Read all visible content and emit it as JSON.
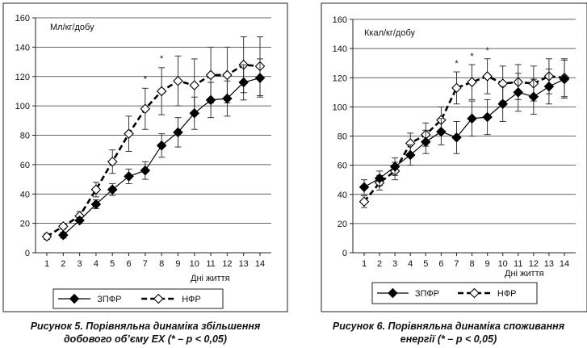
{
  "chart_data": [
    {
      "type": "line",
      "unit_label": "Мл/кг/добу",
      "xlabel": "Дні життя",
      "ylabel": "",
      "x": [
        1,
        2,
        3,
        4,
        5,
        6,
        7,
        8,
        9,
        10,
        11,
        12,
        13,
        14
      ],
      "ylim": [
        0,
        160
      ],
      "yticks": [
        0,
        20,
        40,
        60,
        80,
        100,
        120,
        140,
        160
      ],
      "grid": "horizontal",
      "legend": "bottom",
      "series": [
        {
          "name": "ЗПФР",
          "marker": "filled-diamond",
          "line": "solid",
          "color": "#000000",
          "x": [
            2,
            3,
            4,
            5,
            6,
            7,
            8,
            9,
            10,
            11,
            12,
            13,
            14
          ],
          "values": [
            12,
            22,
            33,
            43,
            52,
            56,
            73,
            82,
            95,
            104,
            105,
            116,
            119
          ],
          "err": [
            2,
            2,
            3,
            4,
            5,
            6,
            8,
            10,
            11,
            12,
            12,
            12,
            13
          ]
        },
        {
          "name": "НФР",
          "marker": "open-diamond",
          "line": "dashed",
          "color": "#000000",
          "x": [
            1,
            2,
            3,
            4,
            5,
            6,
            7,
            8,
            9,
            10,
            11,
            12,
            13,
            14
          ],
          "values": [
            11,
            18,
            25,
            43,
            62,
            81,
            98,
            110,
            117,
            114,
            121,
            121,
            128,
            127
          ],
          "err": [
            2,
            2,
            3,
            5,
            8,
            12,
            14,
            16,
            17,
            18,
            19,
            19,
            19,
            20
          ]
        }
      ],
      "significance_marks": [
        "*",
        "*"
      ],
      "significance_x": [
        7,
        8
      ]
    },
    {
      "type": "line",
      "unit_label": "Ккал/кг/добу",
      "xlabel": "Дні життя",
      "ylabel": "",
      "x": [
        1,
        2,
        3,
        4,
        5,
        6,
        7,
        8,
        9,
        10,
        11,
        12,
        13,
        14
      ],
      "ylim": [
        0,
        160
      ],
      "yticks": [
        0,
        20,
        40,
        60,
        80,
        100,
        120,
        140,
        160
      ],
      "grid": "horizontal",
      "legend": "bottom",
      "series": [
        {
          "name": "ЗПФР",
          "marker": "filled-diamond",
          "line": "solid",
          "color": "#000000",
          "x": [
            1,
            2,
            3,
            4,
            5,
            6,
            7,
            8,
            9,
            10,
            11,
            12,
            13,
            14
          ],
          "values": [
            45,
            51,
            59,
            67,
            76,
            83,
            79,
            92,
            93,
            102,
            110,
            107,
            114,
            119
          ],
          "err": [
            5,
            5,
            6,
            7,
            8,
            9,
            11,
            12,
            12,
            12,
            13,
            12,
            12,
            13
          ]
        },
        {
          "name": "НФР",
          "marker": "open-diamond",
          "line": "dashed",
          "color": "#000000",
          "x": [
            1,
            2,
            3,
            4,
            5,
            6,
            7,
            8,
            9,
            10,
            11,
            12,
            13,
            14
          ],
          "values": [
            35,
            48,
            56,
            75,
            81,
            91,
            113,
            117,
            121,
            116,
            117,
            116,
            121,
            120
          ],
          "err": [
            4,
            5,
            6,
            7,
            8,
            9,
            11,
            12,
            12,
            12,
            12,
            12,
            12,
            13
          ]
        }
      ],
      "significance_marks": [
        "*",
        "*",
        "*"
      ],
      "significance_x": [
        7,
        8,
        9
      ]
    }
  ],
  "captions": [
    {
      "line1": "Рисунок 5. Порівняльна динаміка збільшення",
      "line2": "добового об’єму ЕХ (* – р < 0,05)"
    },
    {
      "line1": "Рисунок 6. Порівняльна динаміка споживання",
      "line2": "енергії (* – р < 0,05)"
    }
  ]
}
